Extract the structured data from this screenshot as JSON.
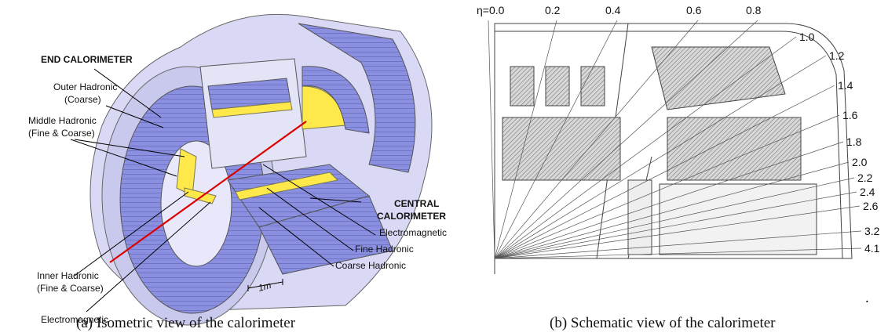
{
  "panel_a": {
    "labels": [
      {
        "lines": [
          "END CALORIMETER"
        ]
      },
      {
        "lines": [
          "Outer Hadronic",
          "(Coarse)"
        ]
      },
      {
        "lines": [
          "Middle Hadronic",
          "(Fine & Coarse)"
        ]
      },
      {
        "lines": [
          "CENTRAL",
          "CALORIMETER"
        ]
      },
      {
        "lines": [
          "Electromagnetic"
        ]
      },
      {
        "lines": [
          "Fine Hadronic"
        ]
      },
      {
        "lines": [
          "Coarse Hadronic"
        ]
      },
      {
        "lines": [
          "Inner Hadronic",
          "(Fine & Coarse)"
        ]
      },
      {
        "lines": [
          "Electromagnetic"
        ]
      }
    ],
    "scale": "1m"
  },
  "panel_b": {
    "eta_labels": [
      "η=0.0",
      "0.2",
      "0.4",
      "0.6",
      "0.8",
      "1.0",
      "1.2",
      "1.4",
      "1.6",
      "1.8",
      "2.0",
      "2.2",
      "2.4",
      "2.6",
      "3.2",
      "4.1"
    ]
  },
  "captions": [
    "(a)  Isometric view of the calorimeter",
    "(b)  Schematic view of the calorimeter"
  ],
  "mark": "."
}
